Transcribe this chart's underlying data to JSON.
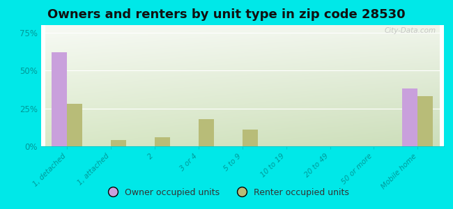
{
  "title": "Owners and renters by unit type in zip code 28530",
  "categories": [
    "1, detached",
    "1, attached",
    "2",
    "3 or 4",
    "5 to 9",
    "10 to 19",
    "20 to 49",
    "50 or more",
    "Mobile home"
  ],
  "owner_values": [
    62,
    0,
    0,
    0,
    0,
    0,
    0,
    0,
    38
  ],
  "renter_values": [
    28,
    4,
    6,
    18,
    11,
    0,
    0,
    0,
    33
  ],
  "owner_color": "#c9a0dc",
  "renter_color": "#b8bc78",
  "background_color": "#00e8e8",
  "plot_bg_top_left": "#eef5e8",
  "plot_bg_top_right": "#f8f8f0",
  "plot_bg_bottom_left": "#d8e8c8",
  "plot_bg_bottom_right": "#eef5e8",
  "title_fontsize": 13,
  "ylabel_ticks": [
    0,
    25,
    50,
    75
  ],
  "ylim": [
    0,
    80
  ],
  "bar_width": 0.35,
  "legend_owner": "Owner occupied units",
  "legend_renter": "Renter occupied units",
  "watermark": "City-Data.com",
  "tick_color": "#00cccc",
  "label_color": "#009999",
  "grid_color": "#ffffff"
}
